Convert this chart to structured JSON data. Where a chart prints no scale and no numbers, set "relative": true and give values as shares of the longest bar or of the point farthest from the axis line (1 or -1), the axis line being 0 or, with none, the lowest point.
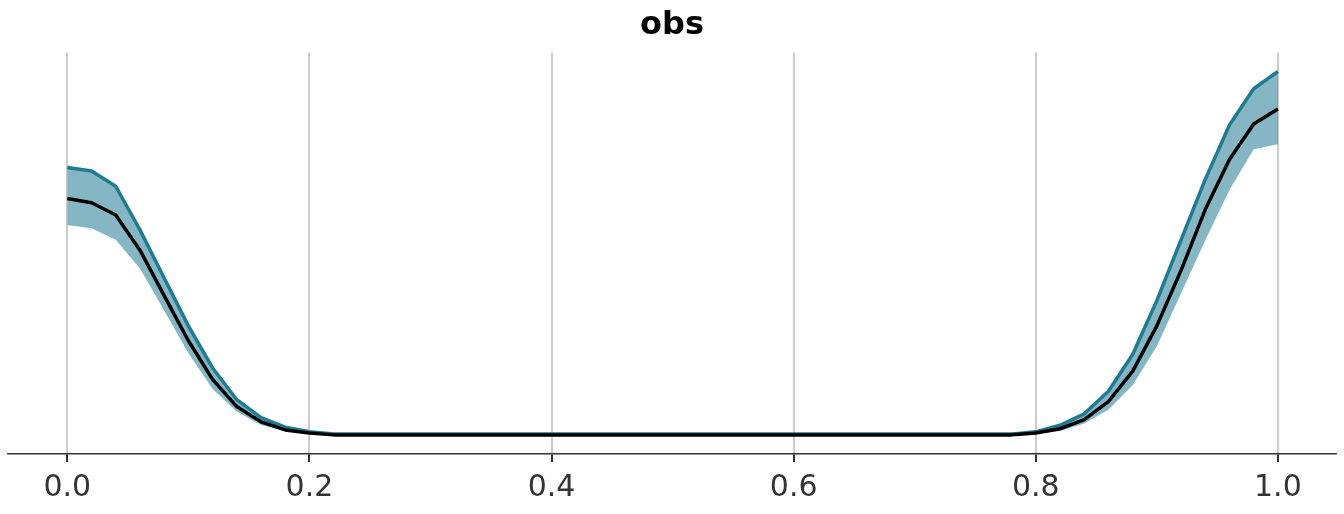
{
  "chart_data": {
    "type": "line",
    "title": "obs",
    "relative": true,
    "grid": "x",
    "marker": "none",
    "line_style": "solid",
    "x": [
      0,
      0.02,
      0.04,
      0.06,
      0.08,
      0.1,
      0.12,
      0.14,
      0.16,
      0.18,
      0.2,
      0.22,
      0.4,
      0.6,
      0.78,
      0.8,
      0.82,
      0.84,
      0.86,
      0.88,
      0.9,
      0.92,
      0.94,
      0.96,
      0.98,
      1.0
    ],
    "xlim": [
      -0.049,
      1.048
    ],
    "xticks": [
      {
        "value": 0,
        "label": "0.0"
      },
      0.2,
      0.4,
      0.6,
      0.8,
      {
        "value": 1,
        "label": "1.0"
      }
    ],
    "series": [
      {
        "color": "#1f7a92",
        "values": [
          0.749,
          0.74,
          0.7,
          0.586,
          0.46,
          0.335,
          0.225,
          0.142,
          0.095,
          0.07,
          0.058,
          0.052,
          0.052,
          0.052,
          0.052,
          0.058,
          0.075,
          0.105,
          0.164,
          0.26,
          0.401,
          0.56,
          0.718,
          0.86,
          0.955,
          1.0
        ],
        "lower": [
          0.599,
          0.59,
          0.56,
          0.485,
          0.375,
          0.264,
          0.17,
          0.111,
          0.076,
          0.06,
          0.052,
          0.049,
          0.049,
          0.049,
          0.049,
          0.052,
          0.06,
          0.08,
          0.116,
          0.18,
          0.282,
          0.42,
          0.559,
          0.69,
          0.797,
          0.81
        ],
        "upper": [
          0.749,
          0.74,
          0.7,
          0.586,
          0.46,
          0.335,
          0.225,
          0.142,
          0.095,
          0.07,
          0.058,
          0.052,
          0.052,
          0.052,
          0.052,
          0.058,
          0.075,
          0.105,
          0.164,
          0.26,
          0.401,
          0.56,
          0.718,
          0.86,
          0.955,
          1.0
        ]
      },
      {
        "color": "#000000",
        "values": [
          0.668,
          0.657,
          0.625,
          0.533,
          0.414,
          0.296,
          0.195,
          0.124,
          0.084,
          0.063,
          0.055,
          0.05,
          0.05,
          0.05,
          0.05,
          0.055,
          0.066,
          0.09,
          0.137,
          0.216,
          0.335,
          0.48,
          0.639,
          0.77,
          0.863,
          0.902
        ]
      }
    ]
  }
}
